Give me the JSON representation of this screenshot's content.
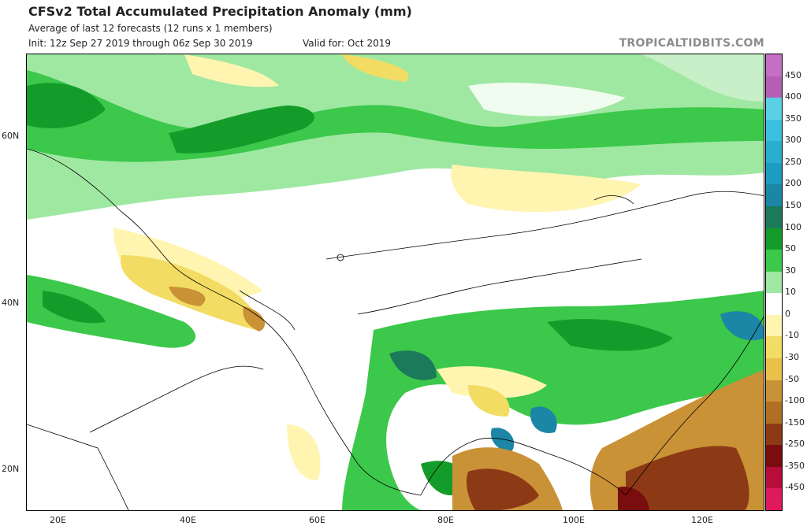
{
  "header": {
    "title": "CFSv2 Total Accumulated Precipitation Anomaly (mm)",
    "subtitle": "Average of last 12 forecasts (12 runs x 1 members)",
    "init": "Init: 12z Sep 27 2019 through 06z Sep 30 2019",
    "valid": "Valid for: Oct 2019",
    "brand": "TROPICALTIDBITS.COM"
  },
  "map": {
    "lat_labels": [
      "60N",
      "40N",
      "20N"
    ],
    "lon_labels": [
      "20E",
      "40E",
      "60E",
      "80E",
      "100E",
      "120E"
    ]
  },
  "colorbar": {
    "labels": [
      "450",
      "400",
      "350",
      "300",
      "250",
      "200",
      "150",
      "100",
      "50",
      "30",
      "10",
      "0",
      "-10",
      "-30",
      "-50",
      "-100",
      "-150",
      "-250",
      "-350",
      "-450"
    ],
    "colors": [
      "#c46ec4",
      "#b65eb6",
      "#5ad0e6",
      "#3cc0e0",
      "#2aaed0",
      "#1c9cc0",
      "#1c86a6",
      "#1b7a5a",
      "#149c2a",
      "#3cc84a",
      "#9fe8a2",
      "#ffffff",
      "#fff5b0",
      "#f2dc63",
      "#e8c04a",
      "#c99236",
      "#b07024",
      "#8c3a16",
      "#7a0e0e",
      "#b80c3a",
      "#e0185c"
    ]
  }
}
